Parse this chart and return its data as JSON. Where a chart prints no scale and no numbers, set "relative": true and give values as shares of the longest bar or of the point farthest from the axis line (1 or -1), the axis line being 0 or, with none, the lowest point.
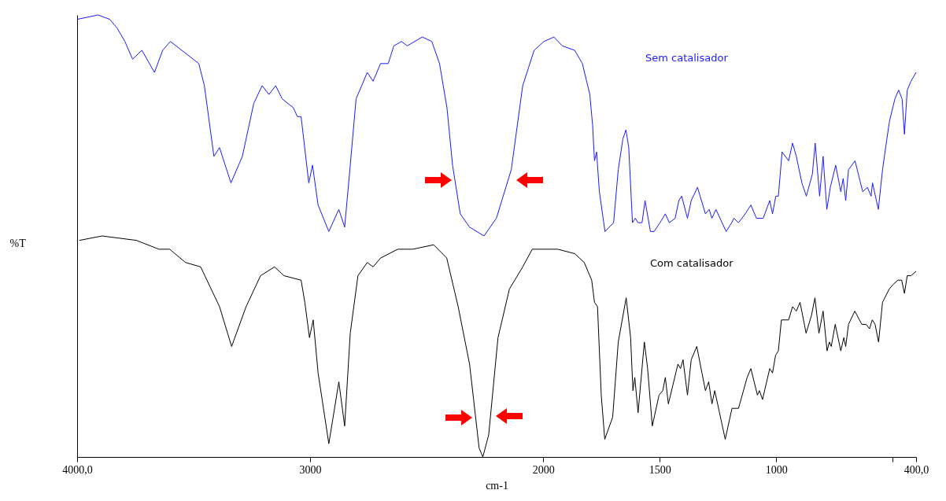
{
  "chart_data": {
    "type": "line",
    "relative": true,
    "xlabel": "cm-1",
    "ylabel": "%T",
    "tick_labels": "x",
    "xlim": [
      4000,
      400
    ],
    "xticks": [
      {
        "value": 4000,
        "label": "4000,0"
      },
      3000,
      2000,
      1500,
      1000,
      {
        "value": 500,
        "label": null
      },
      {
        "value": 400,
        "label": "400,0"
      }
    ],
    "series": [
      {
        "name": "Sem catalisador",
        "color": "#1a1aff",
        "x": [
          4000,
          3910,
          3860,
          3828,
          3795,
          3762,
          3722,
          3668,
          3633,
          3600,
          3551,
          3478,
          3454,
          3413,
          3389,
          3340,
          3291,
          3242,
          3206,
          3177,
          3148,
          3120,
          3072,
          3055,
          3039,
          3006,
          2990,
          2966,
          2920,
          2877,
          2852,
          2828,
          2803,
          2755,
          2730,
          2698,
          2665,
          2641,
          2608,
          2584,
          2519,
          2478,
          2445,
          2413,
          2389,
          2356,
          2316,
          2254,
          2201,
          2137,
          2088,
          2039,
          1997,
          1954,
          1918,
          1865,
          1832,
          1800,
          1788,
          1780,
          1771,
          1759,
          1735,
          1698,
          1678,
          1658,
          1645,
          1633,
          1617,
          1605,
          1593,
          1576,
          1563,
          1540,
          1524,
          1499,
          1476,
          1459,
          1434,
          1418,
          1406,
          1381,
          1365,
          1338,
          1304,
          1288,
          1276,
          1259,
          1215,
          1191,
          1182,
          1162,
          1133,
          1109,
          1085,
          1056,
          1028,
          1016,
          1002,
          991,
          975,
          947,
          930,
          914,
          890,
          871,
          845,
          833,
          814,
          799,
          783,
          768,
          745,
          723,
          713,
          702,
          690,
          662,
          629,
          609,
          593,
          587,
          562,
          544,
          528,
          514,
          491,
          475,
          460,
          450,
          438,
          422,
          400
        ],
        "values": [
          0.99,
          1.0,
          0.99,
          0.97,
          0.94,
          0.9,
          0.92,
          0.87,
          0.92,
          0.94,
          0.92,
          0.89,
          0.84,
          0.68,
          0.7,
          0.62,
          0.68,
          0.8,
          0.84,
          0.82,
          0.84,
          0.81,
          0.79,
          0.77,
          0.77,
          0.62,
          0.66,
          0.57,
          0.51,
          0.56,
          0.52,
          0.66,
          0.81,
          0.87,
          0.85,
          0.89,
          0.89,
          0.93,
          0.94,
          0.93,
          0.95,
          0.94,
          0.89,
          0.79,
          0.66,
          0.55,
          0.52,
          0.5,
          0.54,
          0.65,
          0.84,
          0.92,
          0.94,
          0.95,
          0.93,
          0.92,
          0.89,
          0.82,
          0.75,
          0.67,
          0.69,
          0.6,
          0.51,
          0.53,
          0.65,
          0.72,
          0.74,
          0.7,
          0.53,
          0.54,
          0.53,
          0.53,
          0.58,
          0.51,
          0.51,
          0.53,
          0.55,
          0.53,
          0.54,
          0.58,
          0.59,
          0.54,
          0.58,
          0.61,
          0.55,
          0.56,
          0.54,
          0.56,
          0.51,
          0.53,
          0.54,
          0.53,
          0.55,
          0.57,
          0.54,
          0.54,
          0.58,
          0.55,
          0.59,
          0.59,
          0.69,
          0.67,
          0.71,
          0.68,
          0.62,
          0.59,
          0.64,
          0.71,
          0.59,
          0.68,
          0.56,
          0.61,
          0.66,
          0.6,
          0.63,
          0.58,
          0.65,
          0.67,
          0.6,
          0.61,
          0.59,
          0.62,
          0.56,
          0.65,
          0.71,
          0.76,
          0.81,
          0.83,
          0.81,
          0.73,
          0.83,
          0.85,
          0.87
        ]
      },
      {
        "name": "Com catalisador",
        "color": "#000000",
        "x": [
          3990,
          3893,
          3746,
          3649,
          3603,
          3535,
          3470,
          3389,
          3337,
          3275,
          3213,
          3153,
          3112,
          3039,
          3023,
          3003,
          2987,
          2966,
          2920,
          2877,
          2852,
          2828,
          2795,
          2755,
          2730,
          2698,
          2624,
          2560,
          2470,
          2414,
          2365,
          2316,
          2275,
          2259,
          2234,
          2194,
          2145,
          2088,
          2047,
          1997,
          1971,
          1938,
          1865,
          1824,
          1792,
          1780,
          1767,
          1751,
          1736,
          1702,
          1678,
          1644,
          1625,
          1615,
          1607,
          1593,
          1566,
          1552,
          1532,
          1503,
          1487,
          1476,
          1463,
          1422,
          1411,
          1400,
          1381,
          1365,
          1341,
          1304,
          1290,
          1276,
          1264,
          1219,
          1190,
          1162,
          1125,
          1109,
          1081,
          1072,
          1059,
          1028,
          1016,
          1003,
          991,
          978,
          947,
          930,
          914,
          898,
          872,
          849,
          834,
          817,
          799,
          782,
          772,
          764,
          747,
          723,
          710,
          702,
          690,
          663,
          633,
          614,
          600,
          588,
          576,
          561,
          544,
          515,
          499,
          478,
          462,
          450,
          438,
          422,
          400
        ],
        "values": [
          0.49,
          0.5,
          0.49,
          0.47,
          0.47,
          0.44,
          0.43,
          0.34,
          0.25,
          0.34,
          0.41,
          0.43,
          0.41,
          0.4,
          0.35,
          0.27,
          0.31,
          0.19,
          0.03,
          0.17,
          0.07,
          0.28,
          0.41,
          0.44,
          0.43,
          0.45,
          0.47,
          0.47,
          0.48,
          0.45,
          0.34,
          0.21,
          0.02,
          0.0,
          0.05,
          0.27,
          0.38,
          0.43,
          0.47,
          0.47,
          0.47,
          0.47,
          0.46,
          0.44,
          0.4,
          0.35,
          0.34,
          0.14,
          0.04,
          0.09,
          0.26,
          0.36,
          0.27,
          0.15,
          0.18,
          0.1,
          0.26,
          0.2,
          0.07,
          0.14,
          0.15,
          0.18,
          0.12,
          0.21,
          0.2,
          0.22,
          0.14,
          0.22,
          0.25,
          0.15,
          0.17,
          0.12,
          0.15,
          0.04,
          0.11,
          0.11,
          0.18,
          0.2,
          0.14,
          0.15,
          0.13,
          0.2,
          0.19,
          0.23,
          0.24,
          0.31,
          0.31,
          0.34,
          0.33,
          0.35,
          0.28,
          0.32,
          0.36,
          0.28,
          0.33,
          0.24,
          0.26,
          0.25,
          0.3,
          0.24,
          0.27,
          0.25,
          0.3,
          0.33,
          0.3,
          0.3,
          0.29,
          0.31,
          0.3,
          0.26,
          0.35,
          0.38,
          0.39,
          0.4,
          0.4,
          0.37,
          0.41,
          0.41,
          0.42
        ]
      }
    ]
  }
}
